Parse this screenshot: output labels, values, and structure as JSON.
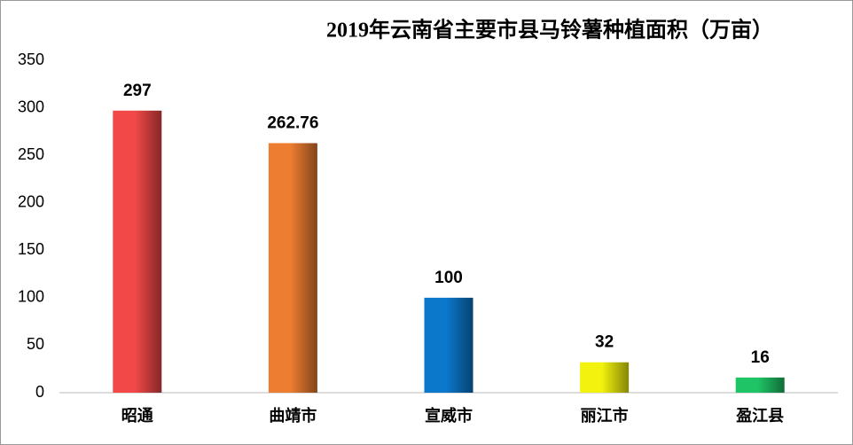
{
  "chart_data": {
    "type": "bar",
    "title": "2019年云南省主要市县马铃薯种植面积（万亩）",
    "categories": [
      "昭通",
      "曲靖市",
      "宣威市",
      "丽江市",
      "盈江县"
    ],
    "values": [
      297,
      262.76,
      100,
      32,
      16
    ],
    "colors": [
      "#f24848",
      "#ed7d31",
      "#0b78cc",
      "#f2f20e",
      "#1fc466"
    ],
    "ylim": [
      0,
      350
    ],
    "yticks": [
      0,
      50,
      100,
      150,
      200,
      250,
      300,
      350
    ],
    "grid": false
  }
}
